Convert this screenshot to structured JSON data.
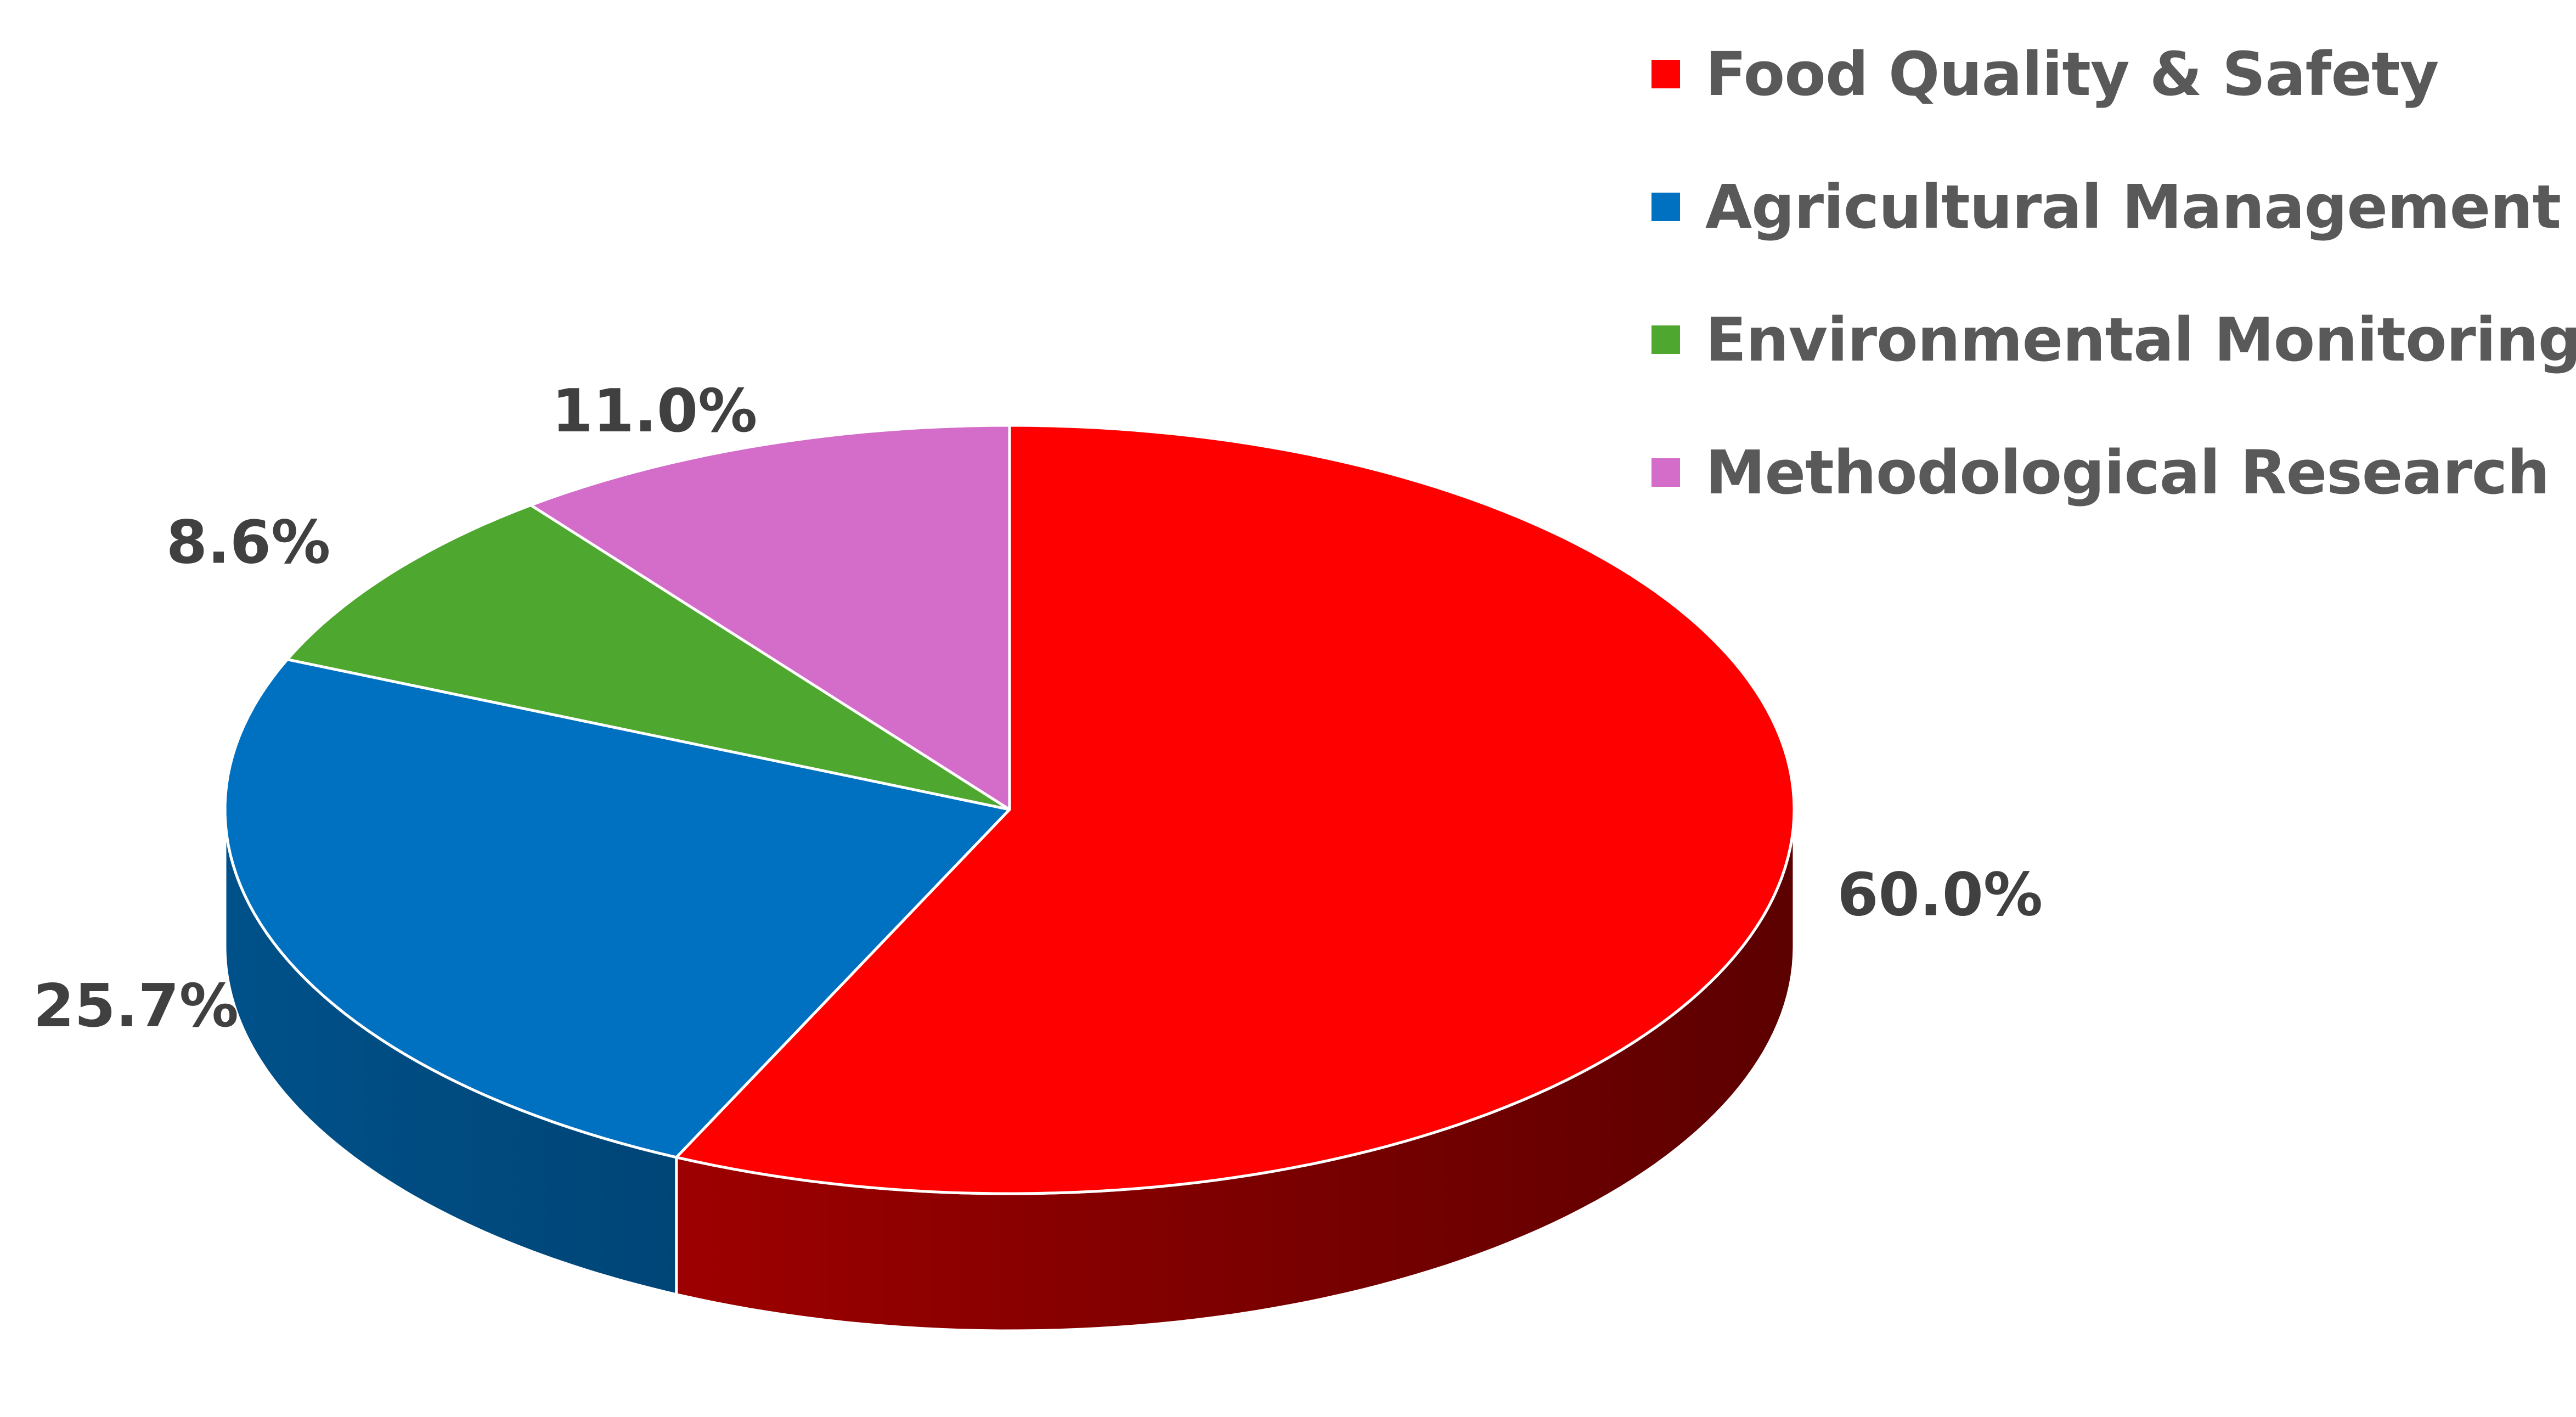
{
  "chart_data": {
    "type": "pie",
    "title": "",
    "slices": [
      {
        "name": "Food Quality & Safety",
        "value": 60.0,
        "label": "60.0%",
        "color": "#FF0000"
      },
      {
        "name": "Agricultural Management",
        "value": 25.7,
        "label": "25.7%",
        "color": "#0070C0"
      },
      {
        "name": "Environmental Monitoring",
        "value": 8.6,
        "label": "8.6%",
        "color": "#4EA72E"
      },
      {
        "name": "Methodological Research",
        "value": 11.0,
        "label": "11.0%",
        "color": "#D36DC9"
      }
    ],
    "style": "3d",
    "legend": {
      "placement": "top-right",
      "items": [
        {
          "name": "Food Quality & Safety",
          "color": "#FF0000"
        },
        {
          "name": "Agricultural Management",
          "color": "#0070C0"
        },
        {
          "name": "Environmental Monitoring",
          "color": "#4EA72E"
        },
        {
          "name": "Methodological Research",
          "color": "#D36DC9"
        }
      ]
    }
  }
}
